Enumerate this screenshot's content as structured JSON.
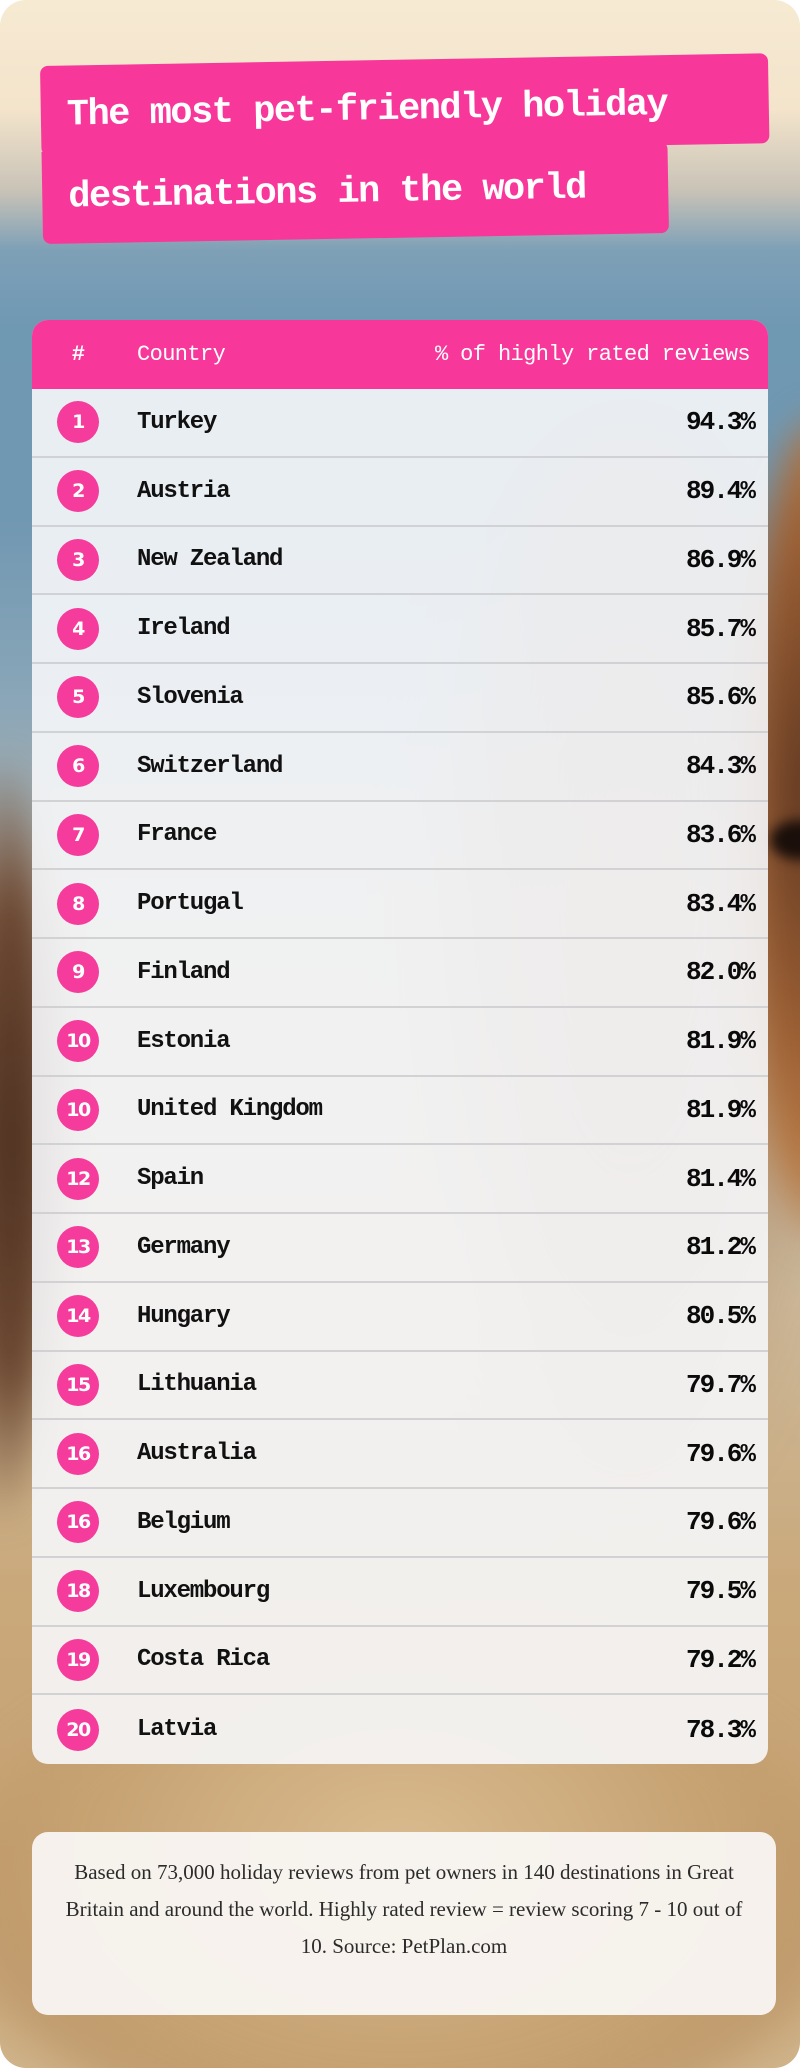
{
  "title": {
    "line1": "The most pet-friendly holiday",
    "line2": "destinations in the world"
  },
  "table": {
    "headers": {
      "rank": "#",
      "country": "Country",
      "percent": "% of highly rated reviews"
    },
    "rows": [
      {
        "rank": "1",
        "country": "Turkey",
        "percent": "94.3%"
      },
      {
        "rank": "2",
        "country": "Austria",
        "percent": "89.4%"
      },
      {
        "rank": "3",
        "country": "New Zealand",
        "percent": "86.9%"
      },
      {
        "rank": "4",
        "country": "Ireland",
        "percent": "85.7%"
      },
      {
        "rank": "5",
        "country": "Slovenia",
        "percent": "85.6%"
      },
      {
        "rank": "6",
        "country": "Switzerland",
        "percent": "84.3%"
      },
      {
        "rank": "7",
        "country": "France",
        "percent": "83.6%"
      },
      {
        "rank": "8",
        "country": "Portugal",
        "percent": "83.4%"
      },
      {
        "rank": "9",
        "country": "Finland",
        "percent": "82.0%"
      },
      {
        "rank": "10",
        "country": "Estonia",
        "percent": "81.9%"
      },
      {
        "rank": "10",
        "country": "United Kingdom",
        "percent": "81.9%"
      },
      {
        "rank": "12",
        "country": "Spain",
        "percent": "81.4%"
      },
      {
        "rank": "13",
        "country": "Germany",
        "percent": "81.2%"
      },
      {
        "rank": "14",
        "country": "Hungary",
        "percent": "80.5%"
      },
      {
        "rank": "15",
        "country": "Lithuania",
        "percent": "79.7%"
      },
      {
        "rank": "16",
        "country": "Australia",
        "percent": "79.6%"
      },
      {
        "rank": "16",
        "country": "Belgium",
        "percent": "79.6%"
      },
      {
        "rank": "18",
        "country": "Luxembourg",
        "percent": "79.5%"
      },
      {
        "rank": "19",
        "country": "Costa Rica",
        "percent": "79.2%"
      },
      {
        "rank": "20",
        "country": "Latvia",
        "percent": "78.3%"
      }
    ]
  },
  "footer": {
    "note": "Based on 73,000 holiday reviews from pet owners in 140 destinations in Great Britain and around the world.  Highly rated review = review scoring 7 - 10 out of 10. Source: PetPlan.com"
  },
  "colors": {
    "accent_pink": "#f7389a",
    "badge_pink": "#f53b9b",
    "header_text": "#ffffff",
    "body_text": "#111111"
  },
  "chart_data": {
    "type": "table",
    "title": "The most pet-friendly holiday destinations in the world",
    "columns": [
      "#",
      "Country",
      "% of highly rated reviews"
    ],
    "categories": [
      "Turkey",
      "Austria",
      "New Zealand",
      "Ireland",
      "Slovenia",
      "Switzerland",
      "France",
      "Portugal",
      "Finland",
      "Estonia",
      "United Kingdom",
      "Spain",
      "Germany",
      "Hungary",
      "Lithuania",
      "Australia",
      "Belgium",
      "Luxembourg",
      "Costa Rica",
      "Latvia"
    ],
    "ranks": [
      1,
      2,
      3,
      4,
      5,
      6,
      7,
      8,
      9,
      10,
      10,
      12,
      13,
      14,
      15,
      16,
      16,
      18,
      19,
      20
    ],
    "values": [
      94.3,
      89.4,
      86.9,
      85.7,
      85.6,
      84.3,
      83.6,
      83.4,
      82.0,
      81.9,
      81.9,
      81.4,
      81.2,
      80.5,
      79.7,
      79.6,
      79.6,
      79.5,
      79.2,
      78.3
    ],
    "unit": "%",
    "ylabel": "% of highly rated reviews",
    "note": "Based on 73,000 holiday reviews from pet owners in 140 destinations in Great Britain and around the world. Highly rated review = review scoring 7 - 10 out of 10. Source: PetPlan.com"
  }
}
